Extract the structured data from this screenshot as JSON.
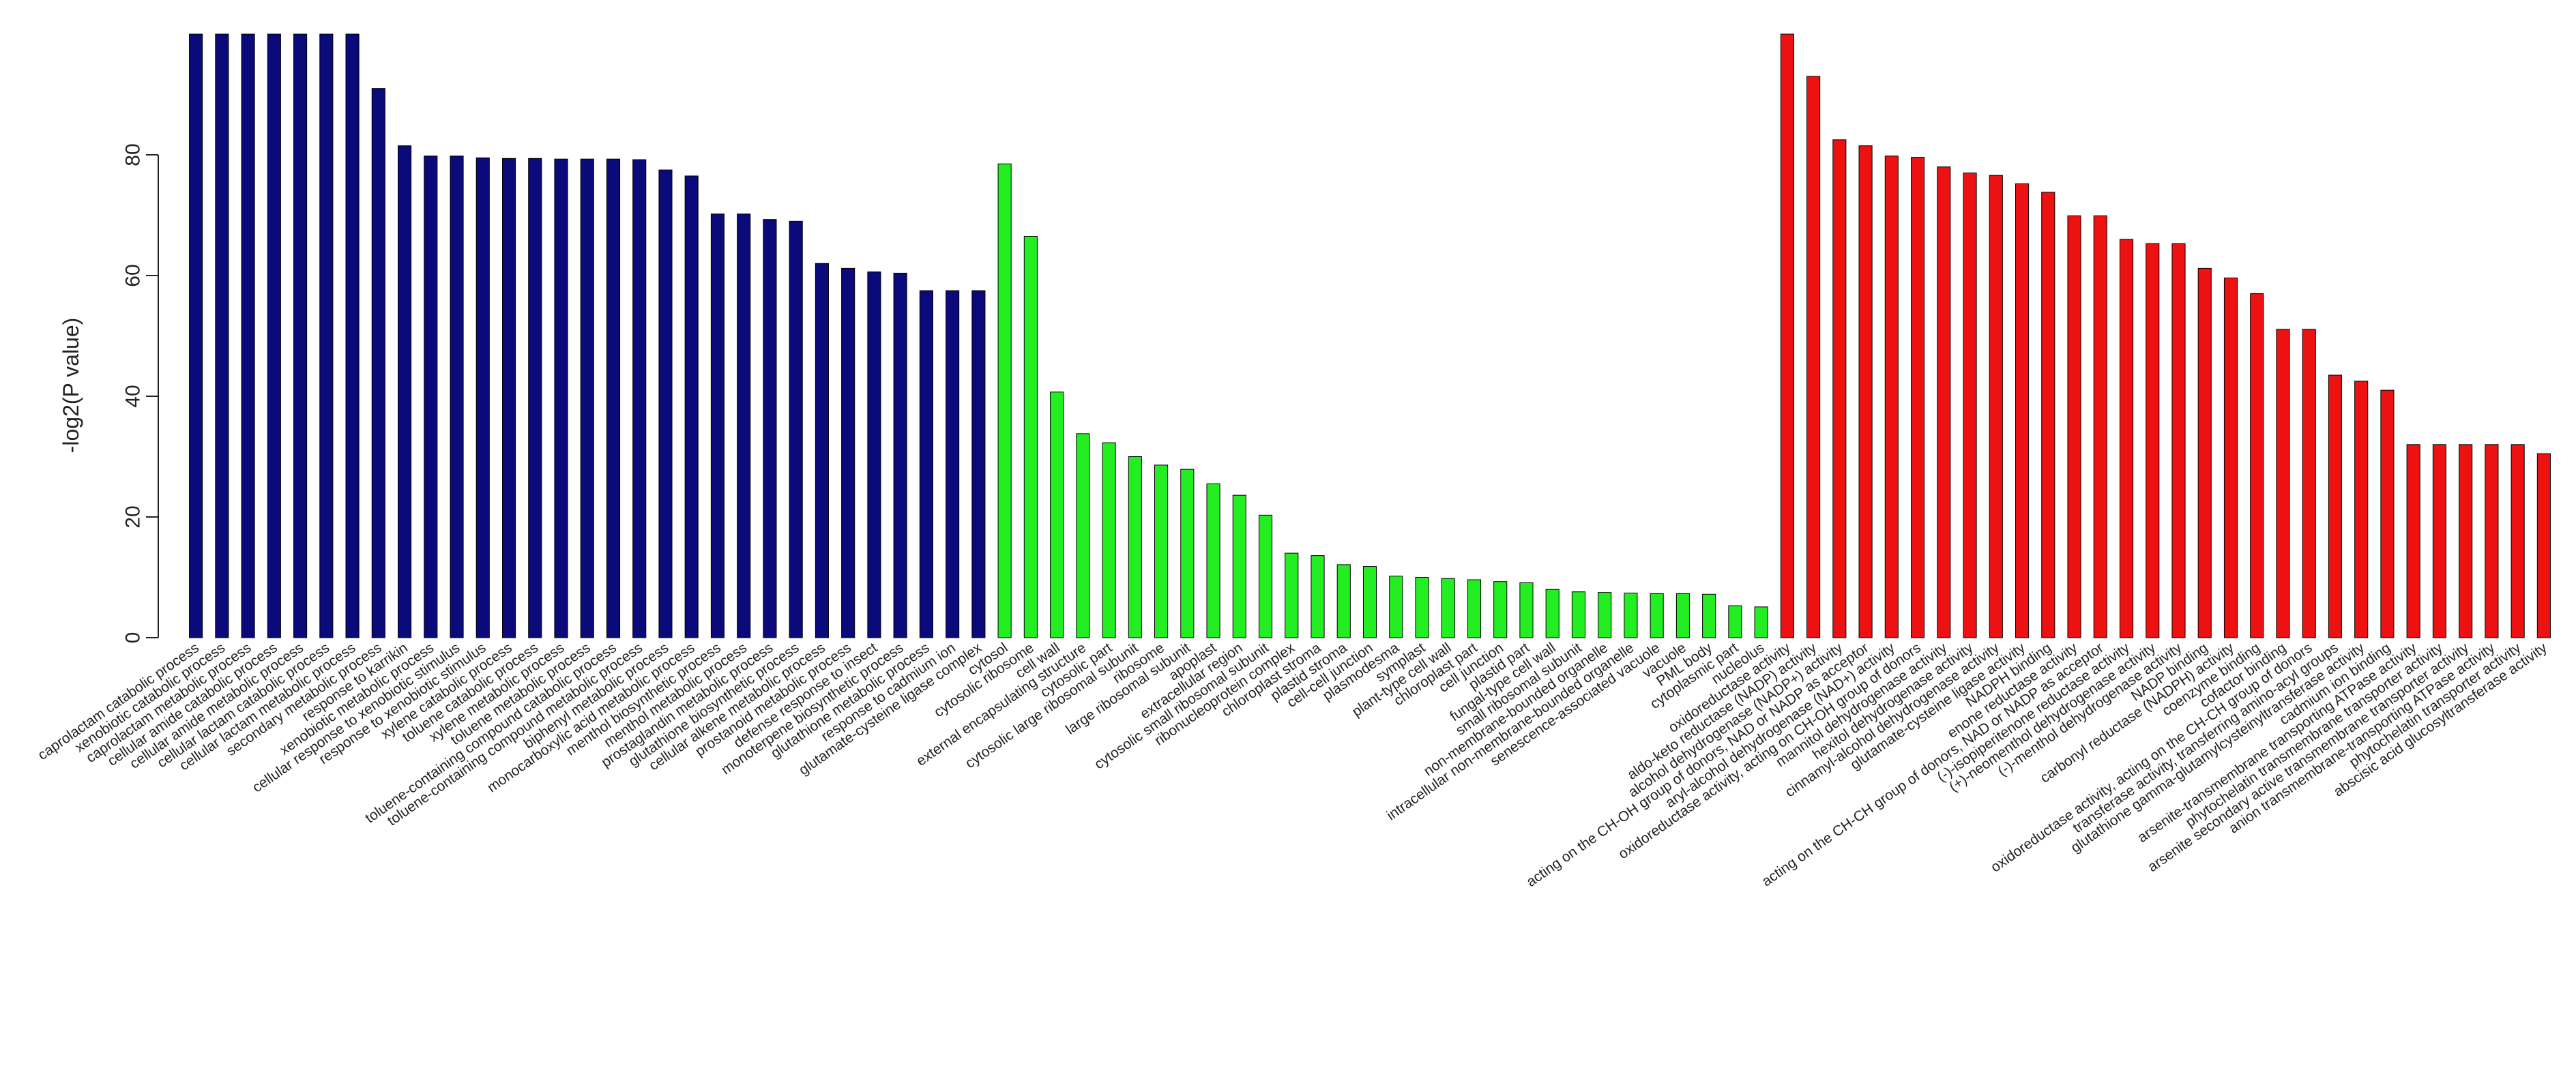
{
  "chart_data": {
    "type": "bar",
    "title": "",
    "xlabel": "",
    "ylabel": "-log2(P value)",
    "ylim": [
      0,
      100
    ],
    "yticks": [
      0,
      20,
      40,
      60,
      80
    ],
    "grid": false,
    "legend": "none",
    "colors": {
      "biological_process": "#0a0a7a",
      "cellular_component": "#22ee22",
      "molecular_function": "#ee1111",
      "bar_border": "#000000"
    },
    "series": [
      {
        "color_key": "biological_process",
        "categories": [
          "caprolactam catabolic process",
          "xenobiotic catabolic process",
          "caprolactam metabolic process",
          "cellular amide catabolic process",
          "cellular amide metabolic process",
          "cellular lactam catabolic process",
          "cellular lactam metabolic process",
          "secondary metabolic process",
          "response to karrikin",
          "xenobiotic metabolic process",
          "cellular response to xenobiotic stimulus",
          "response to xenobiotic stimulus",
          "xylene catabolic process",
          "toluene catabolic process",
          "xylene metabolic process",
          "toluene metabolic process",
          "toluene-containing compound catabolic process",
          "toluene-containing compound metabolic process",
          "biphenyl metabolic process",
          "monocarboxylic acid metabolic process",
          "menthol biosynthetic process",
          "menthol metabolic process",
          "prostaglandin metabolic process",
          "glutathione biosynthetic process",
          "cellular alkene metabolic process",
          "prostanoid metabolic process",
          "defense response to insect",
          "monoterpene biosynthetic process",
          "glutathione metabolic process",
          "response to cadmium ion",
          "glutamate-cysteine ligase complex"
        ],
        "values": [
          100,
          100,
          100,
          100,
          100,
          100,
          100,
          91,
          81.5,
          79.8,
          79.8,
          79.5,
          79.4,
          79.4,
          79.3,
          79.3,
          79.3,
          79.2,
          77.5,
          76.5,
          70.2,
          70.2,
          69.3,
          69,
          62,
          61.2,
          60.6,
          60.4,
          57.5,
          57.5,
          57.5
        ]
      },
      {
        "color_key": "cellular_component",
        "categories": [
          "cytosol",
          "cytosolic ribosome",
          "cell wall",
          "external encapsulating structure",
          "cytosolic part",
          "cytosolic large ribosomal subunit",
          "ribosome",
          "large ribosomal subunit",
          "apoplast",
          "extracellular region",
          "cytosolic small ribosomal subunit",
          "ribonucleoprotein complex",
          "chloroplast stroma",
          "plastid stroma",
          "cell-cell junction",
          "plasmodesma",
          "symplast",
          "plant-type cell wall",
          "chloroplast part",
          "cell junction",
          "plastid part",
          "fungal-type cell wall",
          "small ribosomal subunit",
          "non-membrane-bounded organelle",
          "intracellular non-membrane-bounded organelle",
          "senescence-associated vacuole",
          "vacuole",
          "PML body",
          "cytoplasmic part",
          "nucleolus"
        ],
        "values": [
          78.5,
          66.5,
          40.7,
          33.8,
          32.3,
          30,
          28.6,
          27.9,
          25.5,
          23.6,
          20.3,
          14,
          13.6,
          12.1,
          11.8,
          10.2,
          10,
          9.8,
          9.6,
          9.3,
          9.1,
          8,
          7.6,
          7.5,
          7.4,
          7.3,
          7.3,
          7.2,
          5.3,
          5.1
        ]
      },
      {
        "color_key": "molecular_function",
        "categories": [
          "oxidoreductase activity",
          "aldo-keto reductase (NADP) activity",
          "alcohol dehydrogenase (NADP+) activity",
          "acting on the CH-OH group of donors, NAD or NADP as acceptor",
          "aryl-alcohol dehydrogenase (NAD+) activity",
          "oxidoreductase activity, acting on CH-OH group of donors",
          "mannitol dehydrogenase activity",
          "hexitol dehydrogenase activity",
          "cinnamyl-alcohol dehydrogenase activity",
          "glutamate-cysteine ligase activity",
          "NADPH binding",
          "enone reductase activity",
          "acting on the CH-CH group of donors, NAD or NADP as acceptor",
          "(-)-isopiperitenone reductase activity",
          "(+)-neomenthol dehydrogenase activity",
          "(-)-menthol dehydrogenase activity",
          "NADP binding",
          "carbonyl reductase (NADPH) activity",
          "coenzyme binding",
          "cofactor binding",
          "oxidoreductase activity, acting on the CH-CH group of donors",
          "transferase activity, transferring amino-acyl groups",
          "glutathione gamma-glutamylcysteinyltransferase activity",
          "cadmium ion binding",
          "arsenite-transmembrane transporting ATPase activity",
          "phytochelatin transmembrane transporter activity",
          "arsenite secondary active transmembrane transporter activity",
          "anion transmembrane-transporting ATPase activity",
          "phytochelatin transporter activity",
          "abscisic acid glucosyltransferase activity"
        ],
        "values": [
          100,
          93,
          82.5,
          81.5,
          79.8,
          79.6,
          78,
          77,
          76.6,
          75.2,
          73.8,
          69.9,
          69.9,
          66,
          65.3,
          65.3,
          61.2,
          59.6,
          57,
          51.1,
          51.1,
          43.5,
          42.5,
          41,
          32,
          32,
          32,
          32,
          32,
          30.5
        ]
      }
    ]
  }
}
